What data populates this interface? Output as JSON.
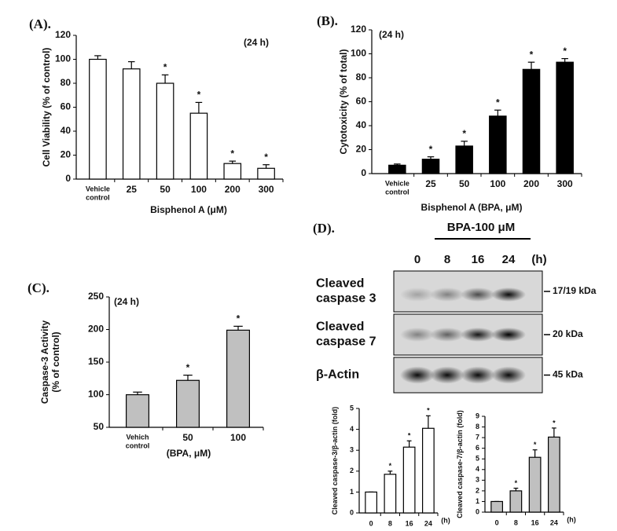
{
  "chart_data": [
    {
      "type": "bar",
      "label": "(A).",
      "annotation": "(24 h)",
      "ylabel": [
        "Cell Viability (% of control)"
      ],
      "xlabel": "Bisphenol A (μM)",
      "categories": [
        [
          "Vehicle",
          "control"
        ],
        "25",
        "50",
        "100",
        "200",
        "300"
      ],
      "values": [
        100,
        92,
        80,
        55,
        13,
        9
      ],
      "errors": [
        3,
        6,
        7,
        9,
        2,
        3
      ],
      "markers": [
        null,
        null,
        "*",
        "*",
        "*",
        "*"
      ],
      "color": "#ffffff",
      "ylim": [
        0,
        120
      ],
      "yticks": [
        0,
        20,
        40,
        60,
        80,
        100,
        120
      ]
    },
    {
      "type": "bar",
      "label": "(B).",
      "annotation": "(24 h)",
      "ylabel": [
        "Cytotoxicity (% of total)"
      ],
      "xlabel": "Bisphenol A (BPA, μM)",
      "categories": [
        [
          "Vehicle",
          "control"
        ],
        "25",
        "50",
        "100",
        "200",
        "300"
      ],
      "values": [
        7,
        12,
        23,
        48,
        87,
        93
      ],
      "errors": [
        1,
        2,
        4,
        5,
        6,
        3
      ],
      "markers": [
        null,
        "*",
        "*",
        "*",
        "*",
        "*"
      ],
      "color": "#000000",
      "ylim": [
        0,
        120
      ],
      "yticks": [
        0,
        20,
        40,
        60,
        80,
        100,
        120
      ]
    },
    {
      "type": "bar",
      "label": "(C).",
      "annotation": "(24 h)",
      "ylabel": [
        "Caspase-3 Activity",
        "(% of control)"
      ],
      "xlabel": "(BPA, μM)",
      "categories": [
        [
          "Vehich",
          "control"
        ],
        "50",
        "100"
      ],
      "values": [
        100,
        122,
        199
      ],
      "errors": [
        4,
        8,
        6
      ],
      "markers": [
        null,
        "*",
        "*"
      ],
      "color": "#c0c0c0",
      "ylim": [
        50,
        250
      ],
      "yticks": [
        50,
        100,
        150,
        200,
        250
      ]
    },
    {
      "type": "bar",
      "ylabel": [
        "Cleaved caspase-3/β-actin (fold)"
      ],
      "xunit": "(h)",
      "categories": [
        "0",
        "8",
        "16",
        "24"
      ],
      "values": [
        1,
        1.85,
        3.15,
        4.05
      ],
      "errors": [
        0,
        0.15,
        0.3,
        0.6
      ],
      "markers": [
        null,
        "*",
        "*",
        "*"
      ],
      "color": "#ffffff",
      "ylim": [
        0,
        5
      ],
      "yticks": [
        0,
        1,
        2,
        3,
        4,
        5
      ]
    },
    {
      "type": "bar",
      "ylabel": [
        "Cleaved caspase-7/β-actin (fold)"
      ],
      "xunit": "(h)",
      "categories": [
        "0",
        "8",
        "16",
        "24"
      ],
      "values": [
        1,
        2.0,
        5.15,
        7.05
      ],
      "errors": [
        0,
        0.25,
        0.7,
        0.85
      ],
      "markers": [
        null,
        "*",
        "*",
        "*"
      ],
      "color": "#c0c0c0",
      "ylim": [
        0,
        9
      ],
      "yticks": [
        0,
        1,
        2,
        3,
        4,
        5,
        6,
        7,
        8,
        9
      ]
    }
  ],
  "blot": {
    "label": "(D).",
    "treatment": "BPA-100 μM",
    "lanes": [
      "0",
      "8",
      "16",
      "24"
    ],
    "unit": "(h)",
    "rows": [
      {
        "name": [
          "Cleaved",
          "caspase 3"
        ],
        "size": "17/19 kDa"
      },
      {
        "name": [
          "Cleaved",
          "caspase 7"
        ],
        "size": "20 kDa"
      },
      {
        "name": [
          "β-Actin"
        ],
        "size": "45 kDa"
      }
    ]
  }
}
